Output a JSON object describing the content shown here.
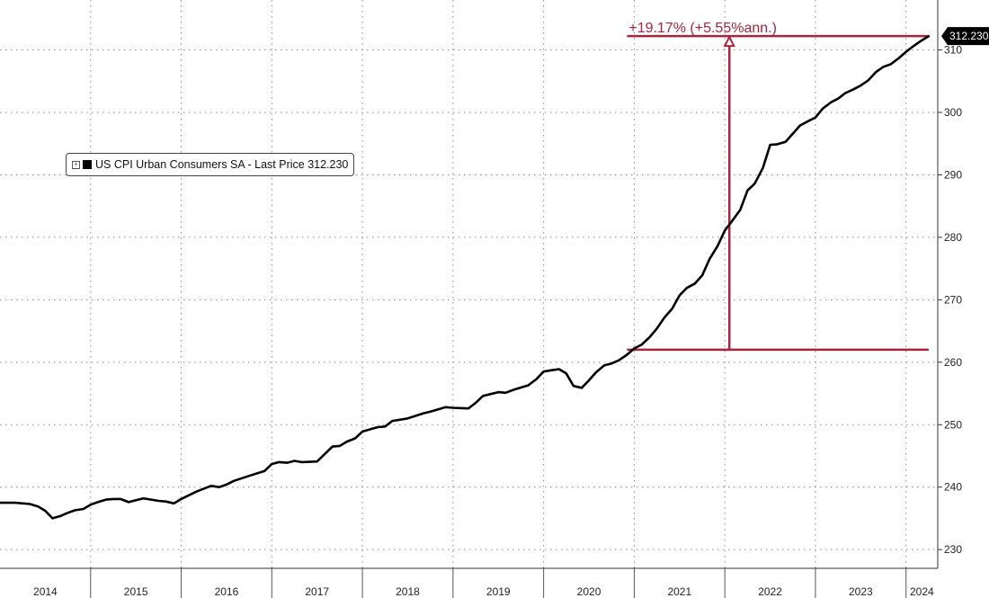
{
  "chart_data": {
    "type": "line",
    "title": "",
    "xlabel": "",
    "ylabel": "",
    "x_range": [
      2014.0,
      2024.35
    ],
    "ylim": [
      227,
      318
    ],
    "y_ticks": [
      230,
      240,
      250,
      260,
      270,
      280,
      290,
      300,
      310
    ],
    "x_tick_labels": [
      "2014",
      "2015",
      "2016",
      "2017",
      "2018",
      "2019",
      "2020",
      "2021",
      "2022",
      "2023",
      "2024"
    ],
    "grid": true,
    "legend_position": "top-left",
    "colors": {
      "series": "#000000",
      "annotation": "#a8243c",
      "last_price_tag": "#000000"
    },
    "series": [
      {
        "name": "US CPI Urban Consumers SA - Last Price 312.230",
        "x": [
          2014.0,
          2014.17,
          2014.33,
          2014.42,
          2014.5,
          2014.58,
          2014.67,
          2014.75,
          2014.83,
          2014.92,
          2015.0,
          2015.08,
          2015.17,
          2015.25,
          2015.33,
          2015.42,
          2015.5,
          2015.58,
          2015.67,
          2015.75,
          2015.83,
          2015.92,
          2016.0,
          2016.17,
          2016.33,
          2016.42,
          2016.5,
          2016.58,
          2016.75,
          2016.92,
          2017.0,
          2017.08,
          2017.17,
          2017.25,
          2017.33,
          2017.5,
          2017.67,
          2017.75,
          2017.83,
          2017.92,
          2018.0,
          2018.17,
          2018.25,
          2018.33,
          2018.5,
          2018.67,
          2018.75,
          2018.92,
          2019.0,
          2019.17,
          2019.25,
          2019.33,
          2019.5,
          2019.58,
          2019.67,
          2019.83,
          2019.92,
          2020.0,
          2020.08,
          2020.17,
          2020.25,
          2020.33,
          2020.42,
          2020.5,
          2020.58,
          2020.67,
          2020.75,
          2020.83,
          2020.92,
          2021.0,
          2021.08,
          2021.17,
          2021.25,
          2021.33,
          2021.42,
          2021.5,
          2021.58,
          2021.67,
          2021.75,
          2021.83,
          2021.92,
          2022.0,
          2022.08,
          2022.17,
          2022.25,
          2022.33,
          2022.42,
          2022.5,
          2022.58,
          2022.67,
          2022.75,
          2022.83,
          2022.92,
          2023.0,
          2023.08,
          2023.17,
          2023.25,
          2023.33,
          2023.42,
          2023.5,
          2023.58,
          2023.67,
          2023.75,
          2023.83,
          2023.92,
          2024.0,
          2024.08,
          2024.17,
          2024.25
        ],
        "y": [
          237.5,
          237.5,
          237.3,
          236.9,
          236.2,
          235.0,
          235.4,
          235.9,
          236.3,
          236.5,
          237.2,
          237.6,
          238.0,
          238.1,
          238.1,
          237.6,
          237.9,
          238.2,
          238.0,
          237.8,
          237.7,
          237.4,
          238.1,
          239.3,
          240.2,
          240.0,
          240.4,
          241.0,
          241.8,
          242.6,
          243.7,
          244.0,
          243.9,
          244.2,
          244.0,
          244.1,
          246.5,
          246.6,
          247.3,
          247.8,
          248.9,
          249.6,
          249.7,
          250.6,
          251.0,
          251.8,
          252.1,
          252.8,
          252.7,
          252.6,
          253.5,
          254.6,
          255.2,
          255.1,
          255.6,
          256.3,
          257.3,
          258.5,
          258.7,
          258.9,
          258.2,
          256.2,
          255.9,
          257.1,
          258.4,
          259.5,
          259.8,
          260.3,
          261.2,
          262.2,
          262.8,
          264.0,
          265.4,
          267.1,
          268.6,
          270.7,
          271.9,
          272.6,
          273.9,
          276.5,
          278.6,
          281.1,
          282.6,
          284.4,
          287.5,
          288.6,
          291.1,
          294.8,
          294.9,
          295.3,
          296.6,
          297.9,
          298.6,
          299.2,
          300.6,
          301.6,
          302.2,
          303.1,
          303.7,
          304.3,
          305.1,
          306.5,
          307.3,
          307.7,
          308.7,
          309.7,
          310.6,
          311.5,
          312.2
        ]
      }
    ],
    "annotation": {
      "label": "+19.17% (+5.55%ann.)",
      "start_x": 2020.92,
      "start_y": 262.0,
      "end_x": 2024.25,
      "end_y": 312.23
    },
    "last_price_tag": "312.230"
  }
}
